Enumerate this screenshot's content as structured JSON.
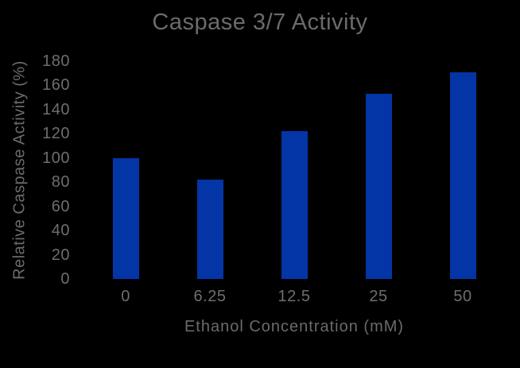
{
  "figure": {
    "background_color": "#000000",
    "text_color": "#6b6b6b"
  },
  "chart_data": {
    "type": "bar",
    "title": "Caspase 3/7 Activity",
    "xlabel": "Ethanol Concentration (mM)",
    "ylabel": "Relative Caspase Activity (%)",
    "categories": [
      "0",
      "6.25",
      "12.5",
      "25",
      "50"
    ],
    "values": [
      100,
      82,
      122,
      153,
      171
    ],
    "ylim": [
      0,
      180
    ],
    "yticks": [
      0,
      20,
      40,
      60,
      80,
      100,
      120,
      140,
      160,
      180
    ],
    "bar_color": "#0435a6",
    "grid": false,
    "legend": false,
    "axis_lines": false
  }
}
